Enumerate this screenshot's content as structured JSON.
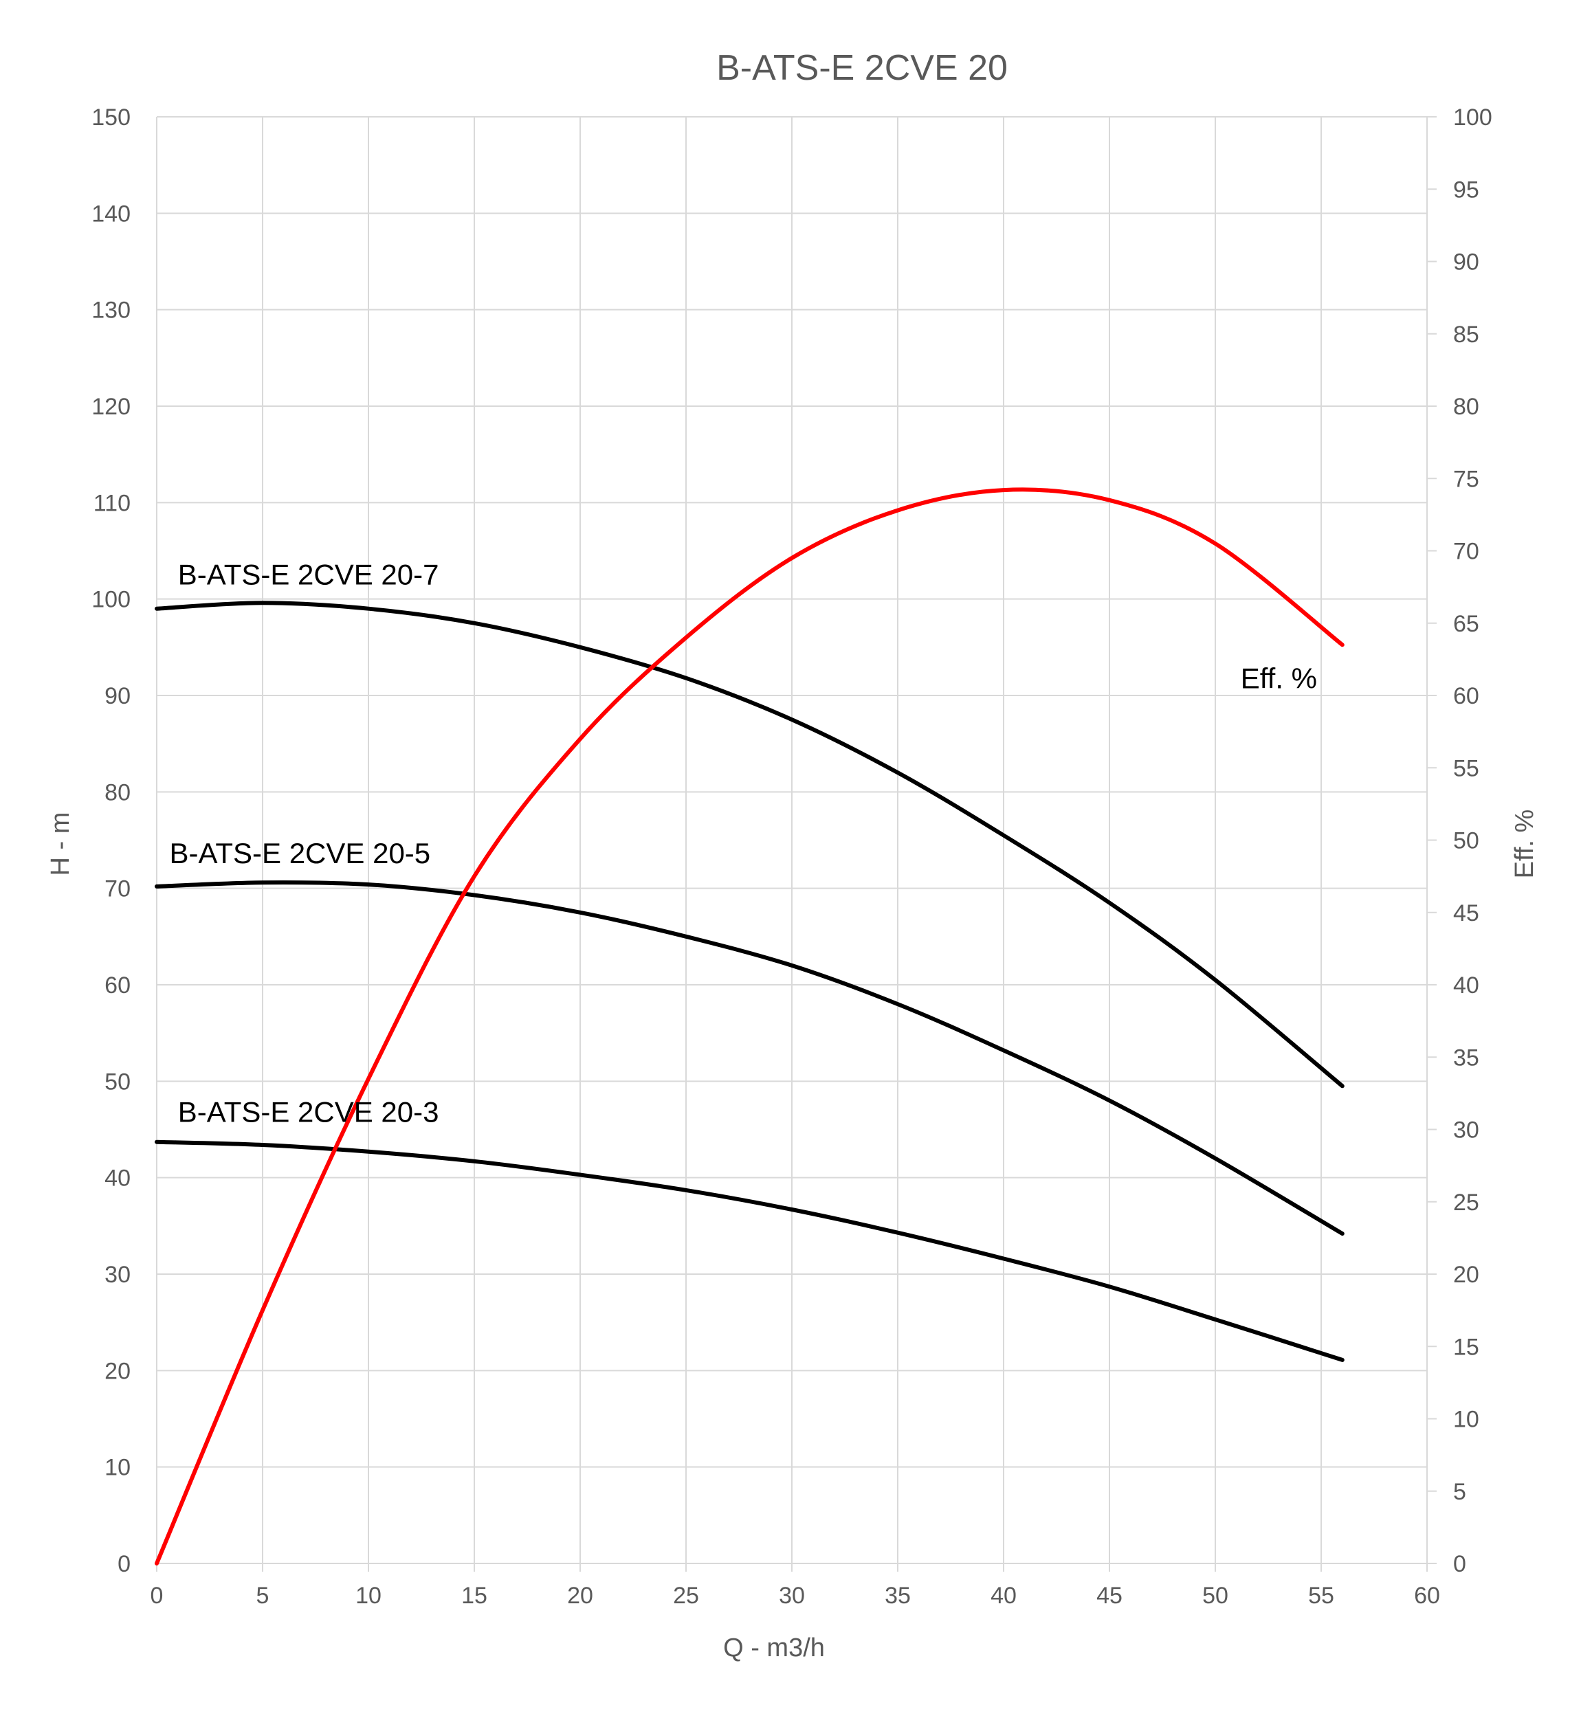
{
  "chart_data": {
    "type": "line",
    "title": "B-ATS-E 2CVE 20",
    "xlabel": "Q - m3/h",
    "ylabel": "H - m",
    "y2label": "Eff. %",
    "xlim": [
      0,
      60
    ],
    "ylim": [
      0,
      150
    ],
    "y2lim": [
      0,
      100
    ],
    "x_ticks": [
      0,
      5,
      10,
      15,
      20,
      25,
      30,
      35,
      40,
      45,
      50,
      55,
      60
    ],
    "y_ticks": [
      0,
      10,
      20,
      30,
      40,
      50,
      60,
      70,
      80,
      90,
      100,
      110,
      120,
      130,
      140,
      150
    ],
    "y2_ticks": [
      0,
      5,
      10,
      15,
      20,
      25,
      30,
      35,
      40,
      45,
      50,
      55,
      60,
      65,
      70,
      75,
      80,
      85,
      90,
      95,
      100
    ],
    "grid": true,
    "colors": {
      "head": "#000000",
      "efficiency": "#ff0000",
      "grid": "#d9d9d9",
      "text": "#595959"
    },
    "series": [
      {
        "name": "B-ATS-E 2CVE 20-7",
        "axis": "left",
        "x": [
          0,
          5,
          10,
          15,
          20,
          25,
          30,
          35,
          40,
          45,
          50,
          56
        ],
        "y": [
          99,
          99.6,
          99.0,
          97.5,
          95.0,
          91.8,
          87.5,
          82.0,
          75.5,
          68.5,
          60.5,
          49.5
        ]
      },
      {
        "name": "B-ATS-E 2CVE 20-5",
        "axis": "left",
        "x": [
          0,
          5,
          10,
          15,
          20,
          25,
          30,
          35,
          40,
          45,
          50,
          56
        ],
        "y": [
          70.2,
          70.6,
          70.4,
          69.3,
          67.5,
          65.0,
          62.0,
          58.0,
          53.2,
          48.0,
          42.0,
          34.2
        ]
      },
      {
        "name": "B-ATS-E 2CVE 20-3",
        "axis": "left",
        "x": [
          0,
          5,
          10,
          15,
          20,
          25,
          30,
          35,
          40,
          45,
          50,
          56
        ],
        "y": [
          43.7,
          43.4,
          42.7,
          41.7,
          40.3,
          38.7,
          36.7,
          34.3,
          31.6,
          28.7,
          25.3,
          21.1
        ]
      },
      {
        "name": "Eff. %",
        "axis": "right",
        "x": [
          0,
          5,
          10,
          15,
          20,
          25,
          30,
          35,
          40,
          45,
          50,
          56
        ],
        "y": [
          0,
          17.5,
          33.5,
          47.5,
          57.0,
          64.0,
          69.5,
          72.8,
          74.2,
          73.5,
          70.5,
          63.5
        ]
      }
    ]
  }
}
